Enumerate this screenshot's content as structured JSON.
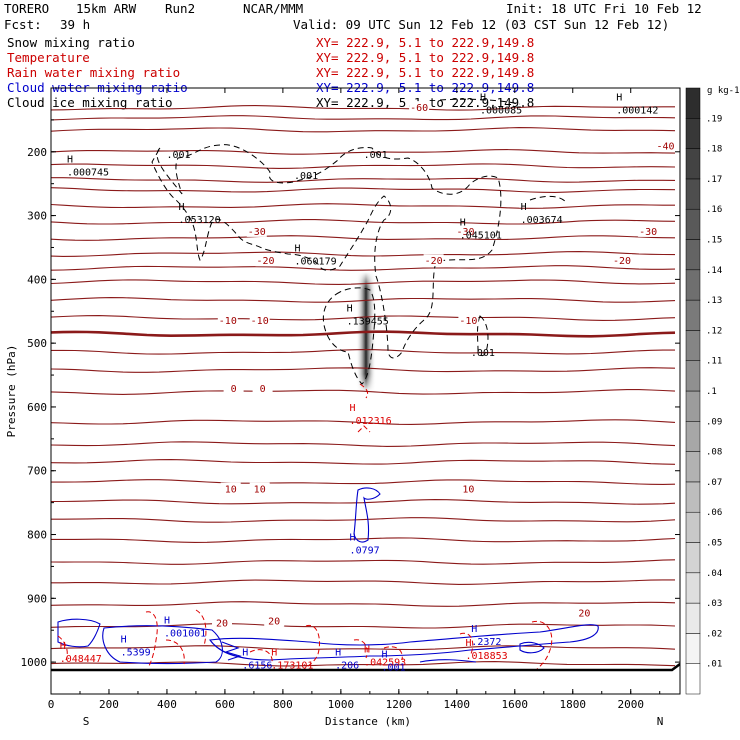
{
  "header": {
    "model": "TORERO",
    "resolution": "15km ARW",
    "run": "Run2",
    "org": "NCAR/MMM",
    "init": "Init: 18 UTC Fri 10 Feb 12",
    "fcst_label": "Fcst:",
    "fcst_value": "39 h",
    "valid": "Valid: 09 UTC Sun 12 Feb 12 (03 CST Sun 12 Feb 12)"
  },
  "fields": [
    {
      "name": "Snow mixing ratio",
      "color": "#000000",
      "xy": "XY= 222.9,  5.1 to 222.9,149.8"
    },
    {
      "name": "Temperature",
      "color": "#cc0000",
      "xy": "XY= 222.9,  5.1 to 222.9,149.8"
    },
    {
      "name": "Rain water mixing ratio",
      "color": "#cc0000",
      "xy": "XY= 222.9,  5.1 to 222.9,149.8"
    },
    {
      "name": "Cloud water mixing ratio",
      "color": "#0000cc",
      "xy": "XY= 222.9,  5.1 to 222.9,149.8"
    },
    {
      "name": "Cloud ice mixing ratio",
      "color": "#000000",
      "xy": "XY= 222.9,  5.1 to 222.9,149.8"
    }
  ],
  "colors": {
    "temperature": "#8b1a1a",
    "temperature_label": "#a00000",
    "rain": "#dd0000",
    "cloud_water": "#0000cc",
    "snow_ice": "#000000"
  },
  "chart_data": {
    "type": "contour cross-section",
    "xlabel": "Distance (km)",
    "ylabel": "Pressure (hPa)",
    "xlim": [
      0,
      2170
    ],
    "ylim": [
      1050,
      100
    ],
    "x_ticks": [
      0,
      200,
      400,
      600,
      800,
      1000,
      1200,
      1400,
      1600,
      1800,
      2000
    ],
    "y_ticks": [
      200,
      300,
      400,
      500,
      600,
      700,
      800,
      900,
      1000
    ],
    "end_labels": {
      "left": "S",
      "right": "N"
    },
    "colorbar": {
      "unit": "g kg-1",
      "ticks": [
        ".01",
        ".02",
        ".03",
        ".04",
        ".05",
        ".06",
        ".07",
        ".08",
        ".09",
        ".1",
        ".11",
        ".12",
        ".13",
        ".14",
        ".15",
        ".16",
        ".17",
        ".18",
        ".19"
      ]
    },
    "temperature_contour_labels": [
      {
        "text": "-60",
        "x": 1270,
        "p": 130
      },
      {
        "text": "-40",
        "x": 2120,
        "p": 190
      },
      {
        "text": "-30",
        "x": 710,
        "p": 324
      },
      {
        "text": "-30",
        "x": 1430,
        "p": 324
      },
      {
        "text": "-30",
        "x": 2060,
        "p": 324
      },
      {
        "text": "-20",
        "x": 740,
        "p": 370
      },
      {
        "text": "-20",
        "x": 1320,
        "p": 370
      },
      {
        "text": "-20",
        "x": 1970,
        "p": 370
      },
      {
        "text": "-10",
        "x": 610,
        "p": 464
      },
      {
        "text": "-10",
        "x": 720,
        "p": 464
      },
      {
        "text": "-10",
        "x": 1440,
        "p": 464
      },
      {
        "text": "0",
        "x": 630,
        "p": 570
      },
      {
        "text": "0",
        "x": 730,
        "p": 570
      },
      {
        "text": "10",
        "x": 620,
        "p": 728
      },
      {
        "text": "10",
        "x": 720,
        "p": 728
      },
      {
        "text": "10",
        "x": 1440,
        "p": 728
      },
      {
        "text": "20",
        "x": 590,
        "p": 938
      },
      {
        "text": "20",
        "x": 770,
        "p": 935
      },
      {
        "text": "20",
        "x": 1840,
        "p": 922
      }
    ],
    "maxima_labels": [
      {
        "value": ".000745",
        "x": 55,
        "p": 237,
        "color": "black"
      },
      {
        "value": ".053120",
        "x": 440,
        "p": 312,
        "color": "black"
      },
      {
        "value": ".060179",
        "x": 840,
        "p": 377,
        "color": "black"
      },
      {
        "value": ".139455",
        "x": 1020,
        "p": 471,
        "color": "black"
      },
      {
        "value": ".045101",
        "x": 1410,
        "p": 336,
        "color": "black"
      },
      {
        "value": ".003674",
        "x": 1620,
        "p": 312,
        "color": "black"
      },
      {
        "value": ".000142",
        "x": 1950,
        "p": 140,
        "color": "black"
      },
      {
        "value": ".000085",
        "x": 1480,
        "p": 140,
        "color": "black"
      },
      {
        "value": ".012316",
        "x": 1030,
        "p": 627,
        "color": "red"
      },
      {
        "value": ".0797",
        "x": 1030,
        "p": 830,
        "color": "blue"
      },
      {
        "value": ".048447",
        "x": 30,
        "p": 1000,
        "color": "red"
      },
      {
        "value": ".5399",
        "x": 240,
        "p": 990,
        "color": "blue"
      },
      {
        "value": ".001001",
        "x": 390,
        "p": 960,
        "color": "blue"
      },
      {
        "value": ".6156",
        "x": 660,
        "p": 1010,
        "color": "blue"
      },
      {
        "value": ".173101",
        "x": 760,
        "p": 1010,
        "color": "red"
      },
      {
        "value": ".206",
        "x": 980,
        "p": 1010,
        "color": "blue"
      },
      {
        "value": ".042593",
        "x": 1080,
        "p": 1005,
        "color": "red"
      },
      {
        "value": ".001",
        "x": 1140,
        "p": 1013,
        "color": "blue"
      },
      {
        "value": ".2372",
        "x": 1450,
        "p": 973,
        "color": "blue"
      },
      {
        "value": ".018853",
        "x": 1430,
        "p": 995,
        "color": "red"
      }
    ],
    "contour_value_labels": [
      {
        "text": ".001",
        "x": 440,
        "p": 210,
        "color": "black"
      },
      {
        "text": ".001",
        "x": 880,
        "p": 243,
        "color": "black"
      },
      {
        "text": ".001",
        "x": 1120,
        "p": 210,
        "color": "black"
      },
      {
        "text": ".001",
        "x": 1490,
        "p": 520,
        "color": "black"
      }
    ]
  }
}
